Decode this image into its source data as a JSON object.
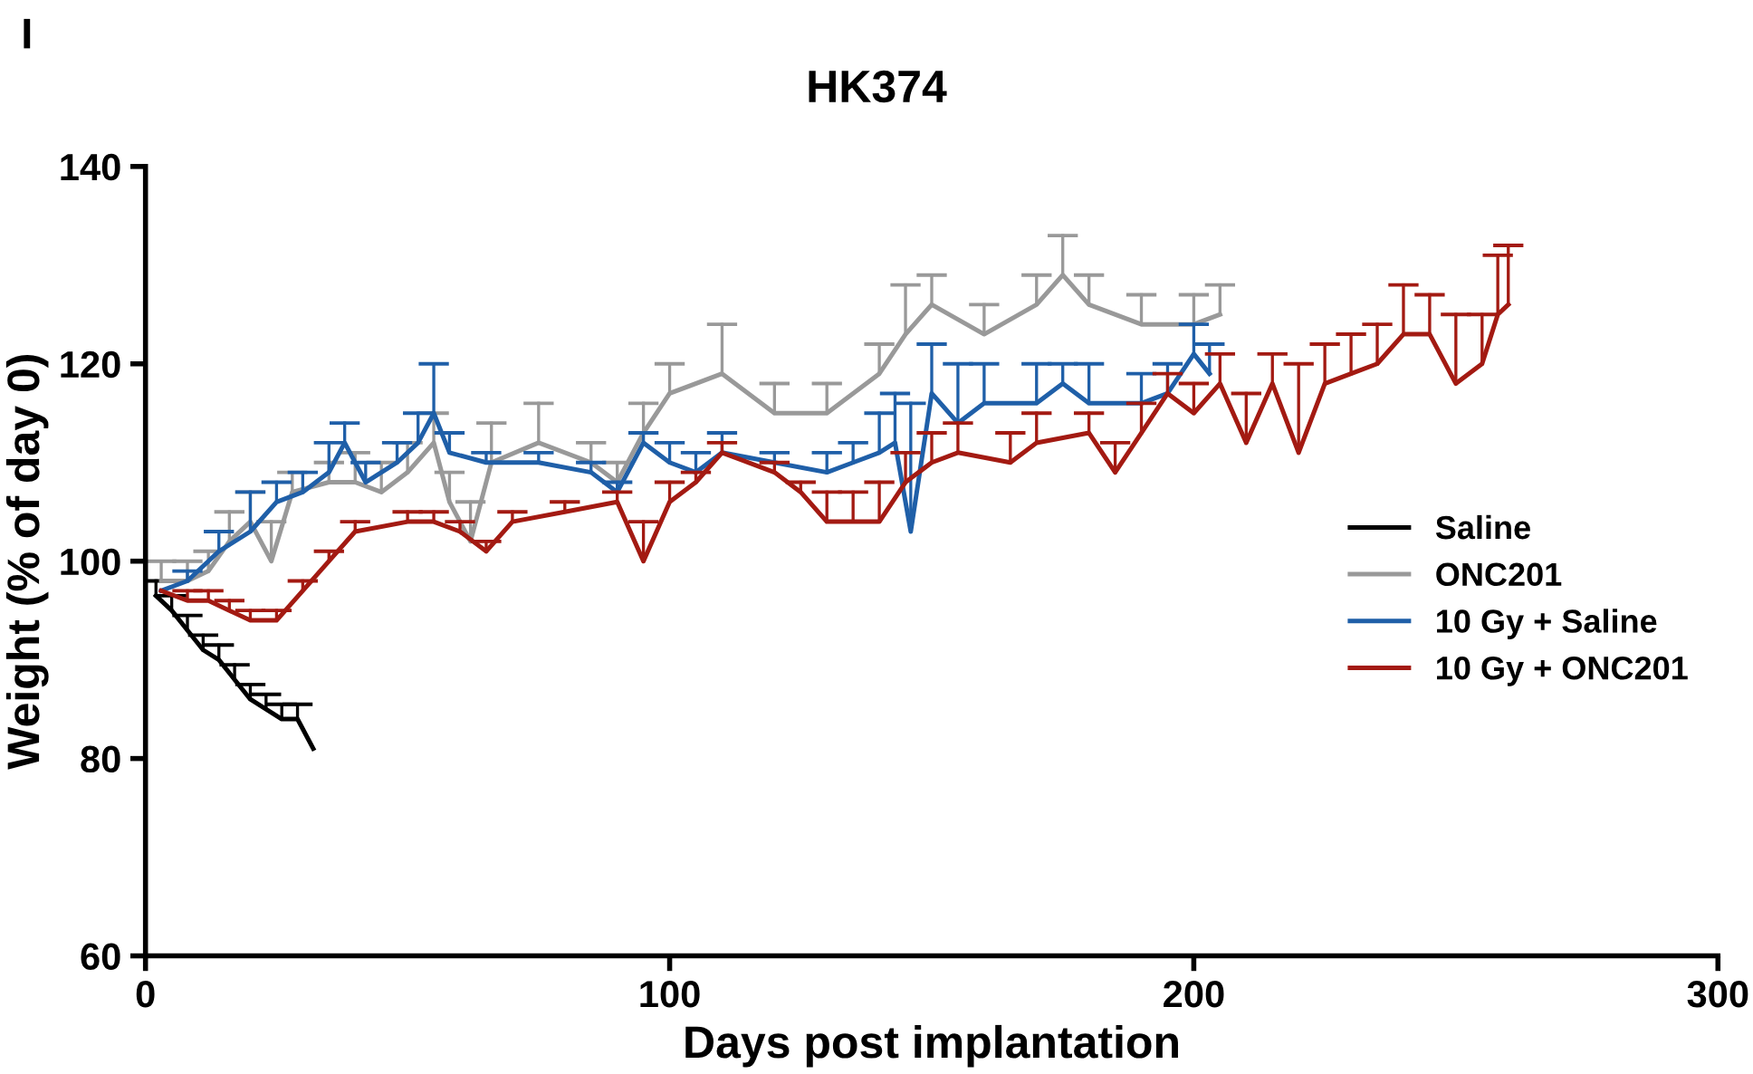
{
  "chart_data": {
    "type": "line",
    "title": "HK374",
    "xlabel": "Days post implantation",
    "ylabel": "Weight (% of day 0)",
    "annotations": [
      "I"
    ],
    "xlim": [
      0,
      300
    ],
    "xticks": [
      0,
      100,
      200,
      300
    ],
    "ylim": [
      60,
      140
    ],
    "yticks": [
      60,
      80,
      100,
      120,
      140
    ],
    "grid": false,
    "legend": "right",
    "marker": "none",
    "line_style": "solid",
    "series": [
      {
        "name": "Saline",
        "color": "#000000",
        "x": [
          2,
          5,
          8,
          11,
          14,
          17,
          20,
          23,
          26,
          29,
          32
        ],
        "values": [
          96.5,
          95,
          93,
          91,
          90,
          88,
          86,
          85,
          84,
          84,
          81
        ],
        "errors": [
          [
            96.5,
            98
          ],
          [
            95,
            96.5
          ],
          [
            93,
            94.5
          ],
          [
            91,
            92.5
          ],
          [
            90,
            91.5
          ],
          [
            88,
            89.5
          ],
          [
            86,
            87.5
          ],
          [
            85,
            86.5
          ],
          [
            84,
            85.5
          ],
          [
            84,
            85.5
          ],
          null
        ]
      },
      {
        "name": "ONC201",
        "color": "#999999",
        "x": [
          3,
          8,
          12,
          16,
          20,
          24,
          28,
          35,
          40,
          45,
          50,
          55,
          58,
          62,
          66,
          75,
          85,
          90,
          95,
          100,
          110,
          120,
          130,
          140,
          145,
          150,
          160,
          170,
          175,
          180,
          190,
          200,
          205
        ],
        "values": [
          98,
          98,
          99,
          102,
          104,
          100,
          107,
          108,
          108,
          107,
          109,
          112,
          106,
          102,
          110,
          112,
          110,
          108,
          113,
          117,
          119,
          115,
          115,
          119,
          123,
          126,
          123,
          126,
          129,
          126,
          124,
          124,
          125
        ],
        "errors": [
          [
            98,
            100
          ],
          [
            98,
            100
          ],
          [
            99,
            101
          ],
          [
            102,
            105
          ],
          [
            104,
            107
          ],
          [
            100,
            104
          ],
          [
            107,
            109
          ],
          [
            108,
            110
          ],
          [
            108,
            111
          ],
          [
            107,
            110
          ],
          [
            109,
            112
          ],
          [
            112,
            115
          ],
          [
            106,
            109
          ],
          [
            102,
            106
          ],
          [
            110,
            114
          ],
          [
            112,
            116
          ],
          [
            110,
            112
          ],
          [
            108,
            110
          ],
          [
            113,
            116
          ],
          [
            117,
            120
          ],
          [
            119,
            124
          ],
          [
            115,
            118
          ],
          [
            115,
            118
          ],
          [
            119,
            122
          ],
          [
            123,
            128
          ],
          [
            126,
            129
          ],
          [
            123,
            126
          ],
          [
            126,
            129
          ],
          [
            129,
            133
          ],
          [
            126,
            129
          ],
          [
            124,
            127
          ],
          [
            124,
            127
          ],
          [
            125,
            128
          ]
        ]
      },
      {
        "name": "10 Gy + Saline",
        "color": "#1f5fa8",
        "x": [
          3,
          8,
          14,
          20,
          25,
          30,
          35,
          38,
          42,
          48,
          52,
          55,
          58,
          65,
          75,
          85,
          90,
          95,
          100,
          105,
          110,
          120,
          130,
          135,
          140,
          143,
          146,
          150,
          155,
          160,
          170,
          175,
          180,
          190,
          195,
          200,
          203
        ],
        "values": [
          97,
          98,
          101,
          103,
          106,
          107,
          109,
          112,
          108,
          110,
          112,
          115,
          111,
          110,
          110,
          109,
          107,
          112,
          110,
          109,
          111,
          110,
          109,
          110,
          111,
          112,
          103,
          117,
          114,
          116,
          116,
          118,
          116,
          116,
          117,
          121,
          119
        ],
        "errors": [
          null,
          [
            98,
            99
          ],
          [
            101,
            103
          ],
          [
            103,
            107
          ],
          [
            106,
            108
          ],
          [
            107,
            109
          ],
          [
            109,
            112
          ],
          [
            112,
            114
          ],
          [
            108,
            110
          ],
          [
            110,
            112
          ],
          [
            112,
            115
          ],
          [
            115,
            120
          ],
          [
            111,
            113
          ],
          [
            110,
            111
          ],
          [
            110,
            111
          ],
          [
            109,
            110
          ],
          [
            107,
            108
          ],
          [
            112,
            113
          ],
          [
            110,
            112
          ],
          [
            109,
            111
          ],
          [
            111,
            113
          ],
          [
            110,
            111
          ],
          [
            109,
            111
          ],
          [
            110,
            112
          ],
          [
            111,
            115
          ],
          [
            112,
            117
          ],
          [
            103,
            116
          ],
          [
            117,
            122
          ],
          [
            114,
            120
          ],
          [
            116,
            120
          ],
          [
            116,
            120
          ],
          [
            118,
            120
          ],
          [
            116,
            120
          ],
          [
            116,
            119
          ],
          [
            117,
            120
          ],
          [
            121,
            124
          ],
          [
            119,
            122
          ]
        ]
      },
      {
        "name": "10 Gy + ONC201",
        "color": "#a31a12",
        "x": [
          3,
          8,
          12,
          16,
          20,
          25,
          30,
          35,
          40,
          50,
          55,
          60,
          65,
          70,
          80,
          90,
          95,
          100,
          105,
          110,
          120,
          125,
          130,
          135,
          140,
          145,
          150,
          155,
          165,
          170,
          180,
          185,
          190,
          195,
          200,
          205,
          210,
          215,
          220,
          225,
          230,
          235,
          240,
          245,
          250,
          255,
          258,
          260
        ],
        "values": [
          97,
          96,
          96,
          95,
          94,
          94,
          97,
          100,
          103,
          104,
          104,
          103,
          101,
          104,
          105,
          106,
          100,
          106,
          108,
          111,
          109,
          107,
          104,
          104,
          104,
          108,
          110,
          111,
          110,
          112,
          113,
          109,
          113,
          117,
          115,
          118,
          112,
          118,
          111,
          118,
          119,
          120,
          123,
          123,
          118,
          120,
          125,
          126
        ],
        "errors": [
          null,
          [
            96,
            97
          ],
          [
            96,
            97
          ],
          [
            95,
            96
          ],
          [
            94,
            95
          ],
          [
            94,
            95
          ],
          [
            97,
            98
          ],
          [
            100,
            101
          ],
          [
            103,
            104
          ],
          [
            104,
            105
          ],
          [
            104,
            105
          ],
          [
            103,
            104
          ],
          [
            101,
            102
          ],
          [
            104,
            105
          ],
          [
            105,
            106
          ],
          [
            106,
            107
          ],
          [
            100,
            104
          ],
          [
            106,
            108
          ],
          [
            108,
            109
          ],
          [
            111,
            112
          ],
          [
            109,
            110
          ],
          [
            107,
            108
          ],
          [
            104,
            107
          ],
          [
            104,
            107
          ],
          [
            104,
            108
          ],
          [
            108,
            111
          ],
          [
            110,
            113
          ],
          [
            111,
            114
          ],
          [
            110,
            113
          ],
          [
            112,
            115
          ],
          [
            113,
            115
          ],
          [
            109,
            112
          ],
          [
            113,
            116
          ],
          [
            117,
            119
          ],
          [
            115,
            118
          ],
          [
            118,
            121
          ],
          [
            112,
            117
          ],
          [
            118,
            121
          ],
          [
            111,
            120
          ],
          [
            118,
            122
          ],
          [
            119,
            123
          ],
          [
            120,
            124
          ],
          [
            123,
            128
          ],
          [
            123,
            127
          ],
          [
            118,
            125
          ],
          [
            120,
            125
          ],
          [
            125,
            131
          ],
          [
            126,
            132
          ]
        ]
      }
    ]
  }
}
